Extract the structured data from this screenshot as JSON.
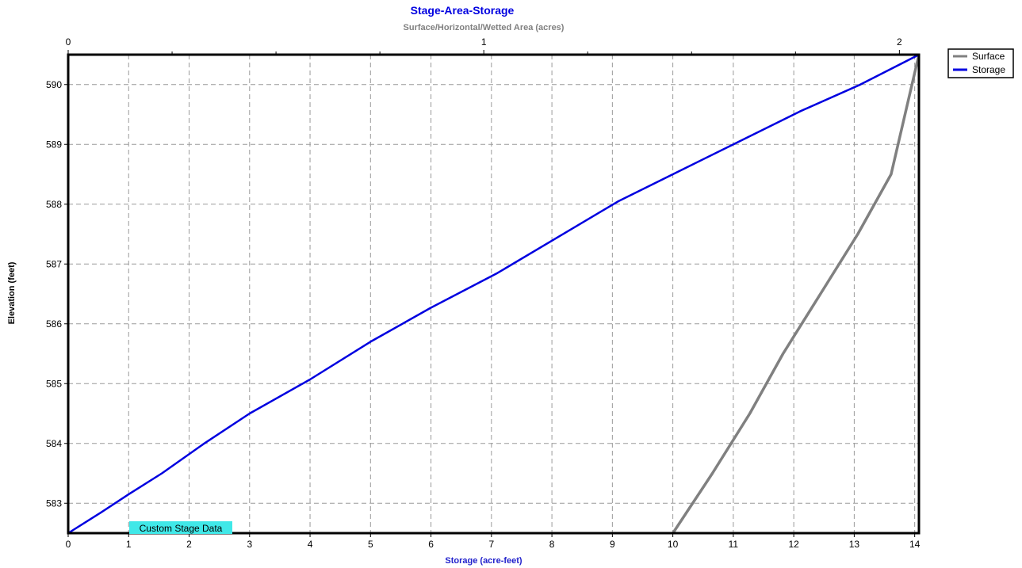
{
  "chart_data": {
    "type": "line",
    "title": "Stage-Area-Storage",
    "top_axis_label": "Surface/Horizontal/Wetted Area (acres)",
    "xlabel": "Storage (acre-feet)",
    "ylabel": "Elevation  (feet)",
    "xlim": [
      0,
      14.07
    ],
    "x2lim": [
      0,
      2.047
    ],
    "ylim": [
      582.5,
      590.5
    ],
    "x_ticks": [
      0,
      1,
      2,
      3,
      4,
      5,
      6,
      7,
      8,
      9,
      10,
      11,
      12,
      13,
      14
    ],
    "x2_ticks": [
      0,
      1,
      2
    ],
    "x2_minor_ticks": [
      0.25,
      0.5,
      0.75,
      1.25,
      1.5,
      1.75
    ],
    "y_ticks": [
      583,
      584,
      585,
      586,
      587,
      588,
      589,
      590
    ],
    "grid": true,
    "legend_position": "top-right outside",
    "annotation": "Custom Stage Data",
    "series": [
      {
        "name": "Surface",
        "axis": "x2",
        "color": "#808080",
        "x": [
          1.455,
          1.55,
          1.64,
          1.72,
          1.81,
          1.9,
          1.98,
          2.047
        ],
        "y": [
          582.5,
          583.5,
          584.5,
          585.5,
          586.5,
          587.5,
          588.5,
          590.5
        ]
      },
      {
        "name": "Storage",
        "axis": "x",
        "color": "#0000e0",
        "x": [
          0,
          0.55,
          1.0,
          1.55,
          2.25,
          3.0,
          4.0,
          5.0,
          6.0,
          7.1,
          8.1,
          9.1,
          10.1,
          11.1,
          12.1,
          13.1,
          14.07
        ],
        "y": [
          582.5,
          582.85,
          583.15,
          583.5,
          584.0,
          584.5,
          585.07,
          585.7,
          586.27,
          586.85,
          587.45,
          588.05,
          588.55,
          589.05,
          589.55,
          590.0,
          590.5
        ]
      }
    ]
  }
}
